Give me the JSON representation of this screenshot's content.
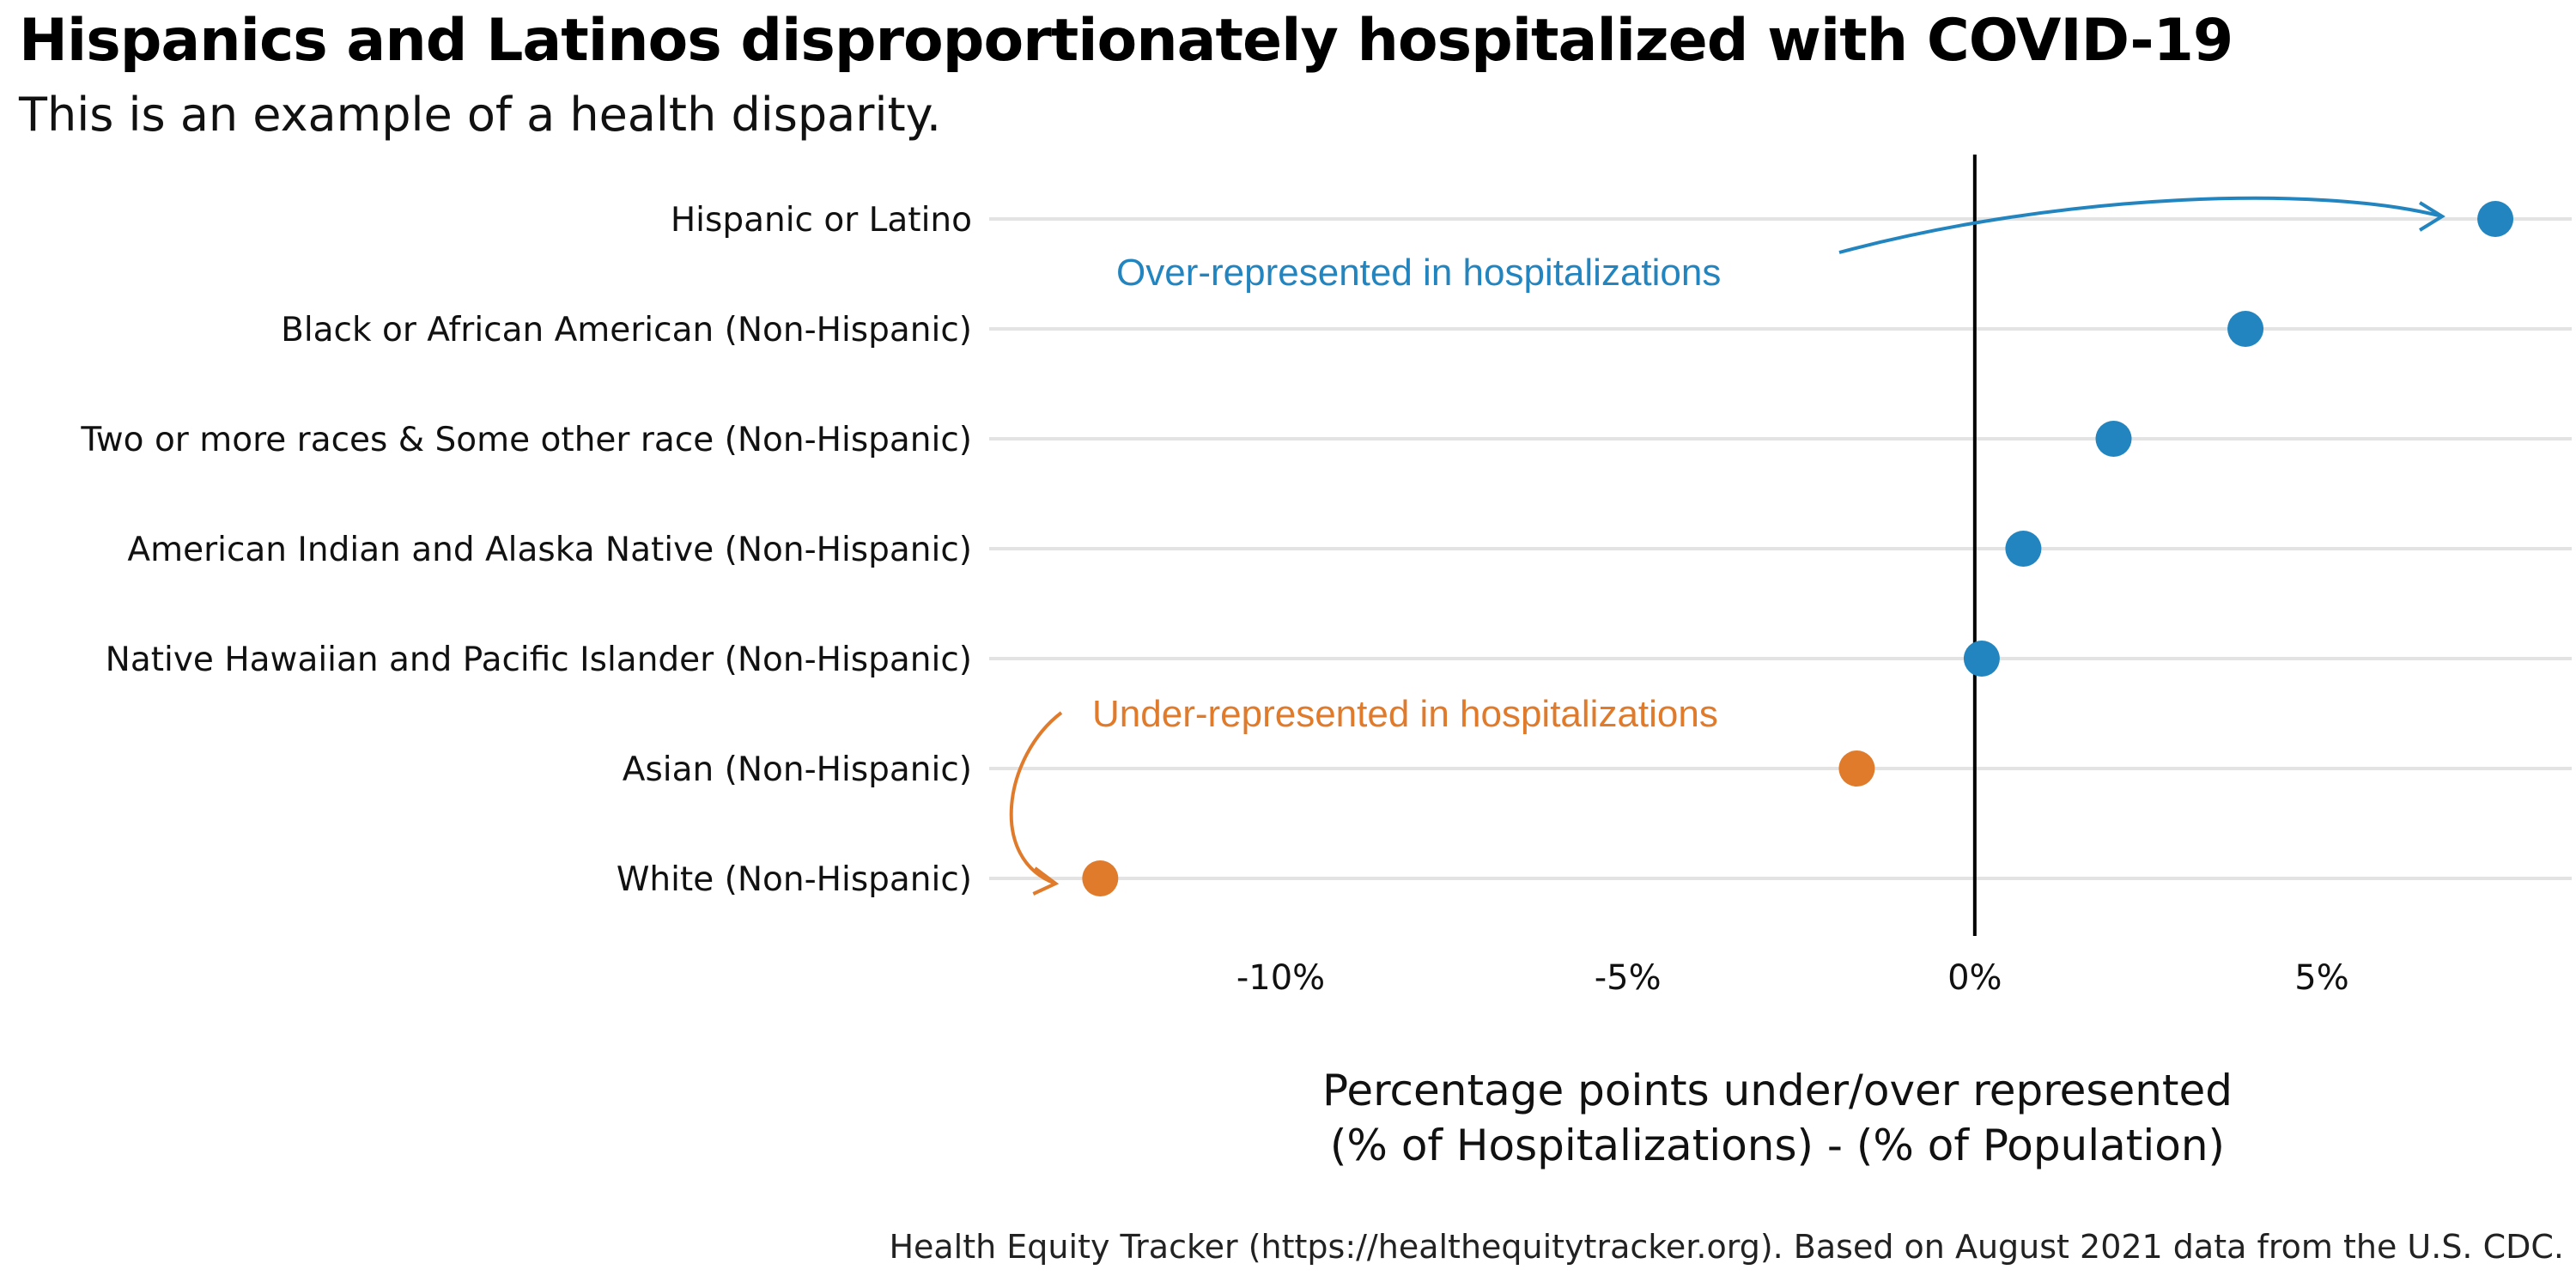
{
  "chart_data": {
    "type": "scatter",
    "title": "Hispanics and Latinos disproportionately hospitalized with COVID-19",
    "subtitle": "This is an example of a health disparity.",
    "xlabel_line1": "Percentage points under/over represented",
    "xlabel_line2": "(% of Hospitalizations) - (% of Population)",
    "caption": "Health Equity Tracker (https://healthequitytracker.org). Based on August 2021 data from the U.S. CDC.",
    "xlim": [
      -14.2,
      8.6
    ],
    "xticks": [
      {
        "value": -10,
        "label": "-10%"
      },
      {
        "value": -5,
        "label": "-5%"
      },
      {
        "value": 0,
        "label": "0%"
      },
      {
        "value": 5,
        "label": "5%"
      }
    ],
    "grid": "horizontal",
    "reference_line": 0,
    "colors": {
      "over": "#2385bf",
      "under": "#e07b2c"
    },
    "categories": [
      "Hispanic or Latino",
      "Black or African American (Non-Hispanic)",
      "Two or more races & Some other race (Non-Hispanic)",
      "American Indian and Alaska Native (Non-Hispanic)",
      "Native Hawaiian and Pacific Islander (Non-Hispanic)",
      "Asian (Non-Hispanic)",
      "White (Non-Hispanic)"
    ],
    "values": [
      7.5,
      3.9,
      2.0,
      0.7,
      0.1,
      -1.7,
      -12.6
    ],
    "annotations": [
      {
        "text": "Over-represented in hospitalizations",
        "group": "over"
      },
      {
        "text": "Under-represented in hospitalizations",
        "group": "under"
      }
    ]
  }
}
